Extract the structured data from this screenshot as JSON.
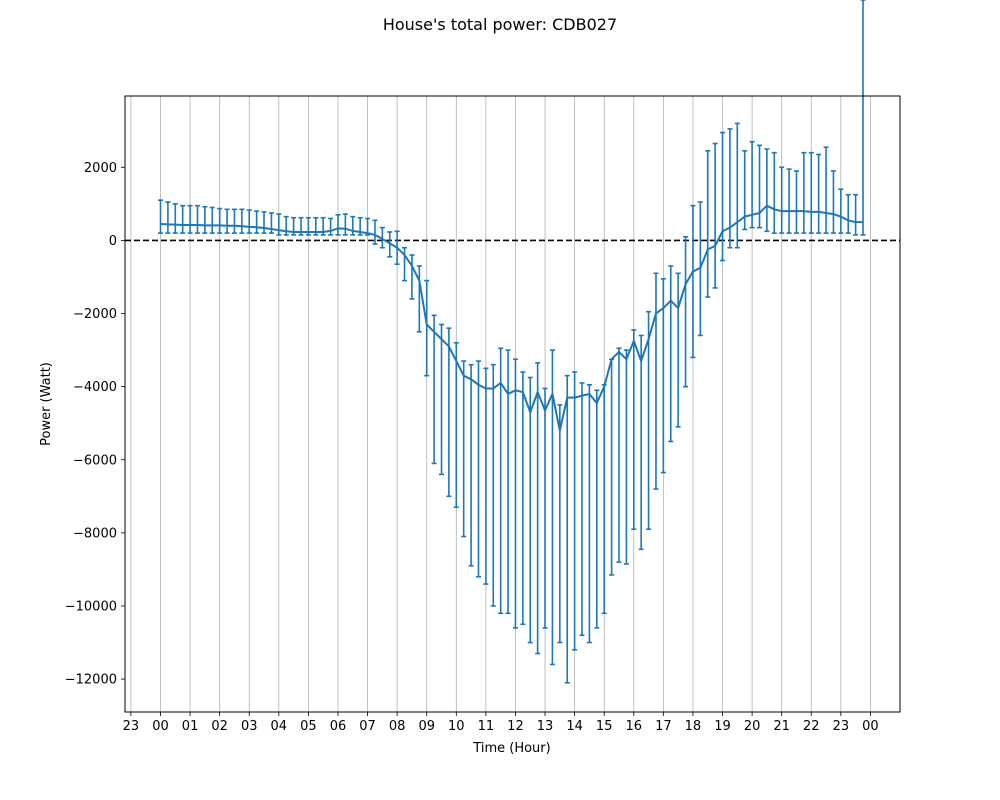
{
  "chart_data": {
    "type": "line",
    "title": "House's total power: CDB027",
    "xlabel": "Time (Hour)",
    "ylabel": "Power (Watt)",
    "x_tick_labels": [
      "23",
      "00",
      "01",
      "02",
      "03",
      "04",
      "05",
      "06",
      "07",
      "08",
      "09",
      "10",
      "11",
      "12",
      "13",
      "14",
      "15",
      "16",
      "17",
      "18",
      "19",
      "20",
      "21",
      "22",
      "23",
      "00"
    ],
    "x_tick_hours": [
      -1,
      0,
      1,
      2,
      3,
      4,
      5,
      6,
      7,
      8,
      9,
      10,
      11,
      12,
      13,
      14,
      15,
      16,
      17,
      18,
      19,
      20,
      21,
      22,
      23,
      24
    ],
    "xlim": [
      -1.2,
      25.0
    ],
    "y_ticks": [
      2000,
      0,
      -2000,
      -4000,
      -6000,
      -8000,
      -10000,
      -12000
    ],
    "y_tick_labels": [
      "2000",
      "0",
      "−2000",
      "−4000",
      "−6000",
      "−8000",
      "−10000",
      "−12000"
    ],
    "ylim": [
      -12900,
      3950
    ],
    "grid": "vertical",
    "reference_line": {
      "y": 0,
      "style": "dashed",
      "color": "#000000"
    },
    "series": [
      {
        "color": "#1f77b4",
        "x_hours": [
          0,
          0.25,
          0.5,
          0.75,
          1,
          1.25,
          1.5,
          1.75,
          2,
          2.25,
          2.5,
          2.75,
          3,
          3.25,
          3.5,
          3.75,
          4,
          4.25,
          4.5,
          4.75,
          5,
          5.25,
          5.5,
          5.75,
          6,
          6.25,
          6.5,
          6.75,
          7,
          7.25,
          7.5,
          7.75,
          8,
          8.25,
          8.5,
          8.75,
          9,
          9.25,
          9.5,
          9.75,
          10,
          10.25,
          10.5,
          10.75,
          11,
          11.25,
          11.5,
          11.75,
          12,
          12.25,
          12.5,
          12.75,
          13,
          13.25,
          13.5,
          13.75,
          14,
          14.25,
          14.5,
          14.75,
          15,
          15.25,
          15.5,
          15.75,
          16,
          16.25,
          16.5,
          16.75,
          17,
          17.25,
          17.5,
          17.75,
          18,
          18.25,
          18.5,
          18.75,
          19,
          19.25,
          19.5,
          19.75,
          20,
          20.25,
          20.5,
          20.75,
          21,
          21.25,
          21.5,
          21.75,
          22,
          22.25,
          22.5,
          22.75,
          23,
          23.25,
          23.5,
          23.75
        ],
        "mean": [
          450,
          440,
          430,
          420,
          420,
          420,
          410,
          410,
          410,
          400,
          400,
          390,
          370,
          360,
          340,
          310,
          280,
          250,
          230,
          230,
          230,
          230,
          230,
          260,
          330,
          320,
          260,
          230,
          200,
          150,
          40,
          -80,
          -200,
          -400,
          -700,
          -1100,
          -2300,
          -2500,
          -2700,
          -2900,
          -3300,
          -3700,
          -3800,
          -3950,
          -4050,
          -4050,
          -3900,
          -4200,
          -4100,
          -4150,
          -4700,
          -4150,
          -4650,
          -4200,
          -5200,
          -4300,
          -4300,
          -4250,
          -4200,
          -4450,
          -4000,
          -3250,
          -3050,
          -3250,
          -2750,
          -3300,
          -2700,
          -2000,
          -1850,
          -1650,
          -1850,
          -1200,
          -850,
          -750,
          -250,
          -150,
          250,
          350,
          500,
          650,
          700,
          750,
          950,
          850,
          800,
          800,
          800,
          800,
          780,
          780,
          750,
          720,
          650,
          550,
          500,
          500
        ],
        "err_low": [
          200,
          200,
          200,
          200,
          200,
          200,
          200,
          200,
          200,
          200,
          200,
          200,
          200,
          200,
          200,
          200,
          150,
          150,
          150,
          150,
          150,
          150,
          150,
          150,
          150,
          150,
          150,
          150,
          150,
          -100,
          -200,
          -450,
          -650,
          -1100,
          -1600,
          -2500,
          -3700,
          -6100,
          -6400,
          -7000,
          -7300,
          -8100,
          -8900,
          -9200,
          -9400,
          -10000,
          -10200,
          -10200,
          -10600,
          -10500,
          -11000,
          -11300,
          -10600,
          -11600,
          -11000,
          -12100,
          -11200,
          -10800,
          -11000,
          -10600,
          -10200,
          -9150,
          -8800,
          -8850,
          -7900,
          -8450,
          -7900,
          -6800,
          -6350,
          -5500,
          -5100,
          -4000,
          -3200,
          -2600,
          -1550,
          -1300,
          -550,
          -200,
          -200,
          300,
          350,
          350,
          250,
          200,
          200,
          200,
          200,
          200,
          200,
          200,
          200,
          200,
          200,
          200,
          150,
          150
        ],
        "err_high": [
          1100,
          1050,
          1000,
          950,
          950,
          950,
          920,
          900,
          870,
          850,
          850,
          850,
          830,
          800,
          780,
          750,
          720,
          650,
          620,
          620,
          620,
          620,
          620,
          600,
          700,
          720,
          650,
          620,
          600,
          550,
          350,
          230,
          250,
          -200,
          -400,
          -700,
          -1100,
          -2050,
          -2300,
          -2400,
          -2800,
          -3300,
          -3400,
          -3300,
          -3500,
          -3400,
          -2950,
          -3000,
          -3250,
          -3600,
          -3750,
          -3350,
          -4050,
          -3000,
          -4500,
          -3700,
          -3600,
          -3900,
          -3950,
          -4100,
          -3950,
          -3250,
          -2950,
          -3000,
          -2450,
          -2600,
          -1950,
          -900,
          -1050,
          -700,
          -900,
          100,
          950,
          1050,
          2450,
          2650,
          2950,
          3050,
          3200,
          2450,
          2700,
          2600,
          2500,
          2400,
          2000,
          1950,
          1900,
          2400,
          2400,
          2350,
          2550,
          1900,
          1400,
          1250,
          1250
        ]
      }
    ]
  }
}
